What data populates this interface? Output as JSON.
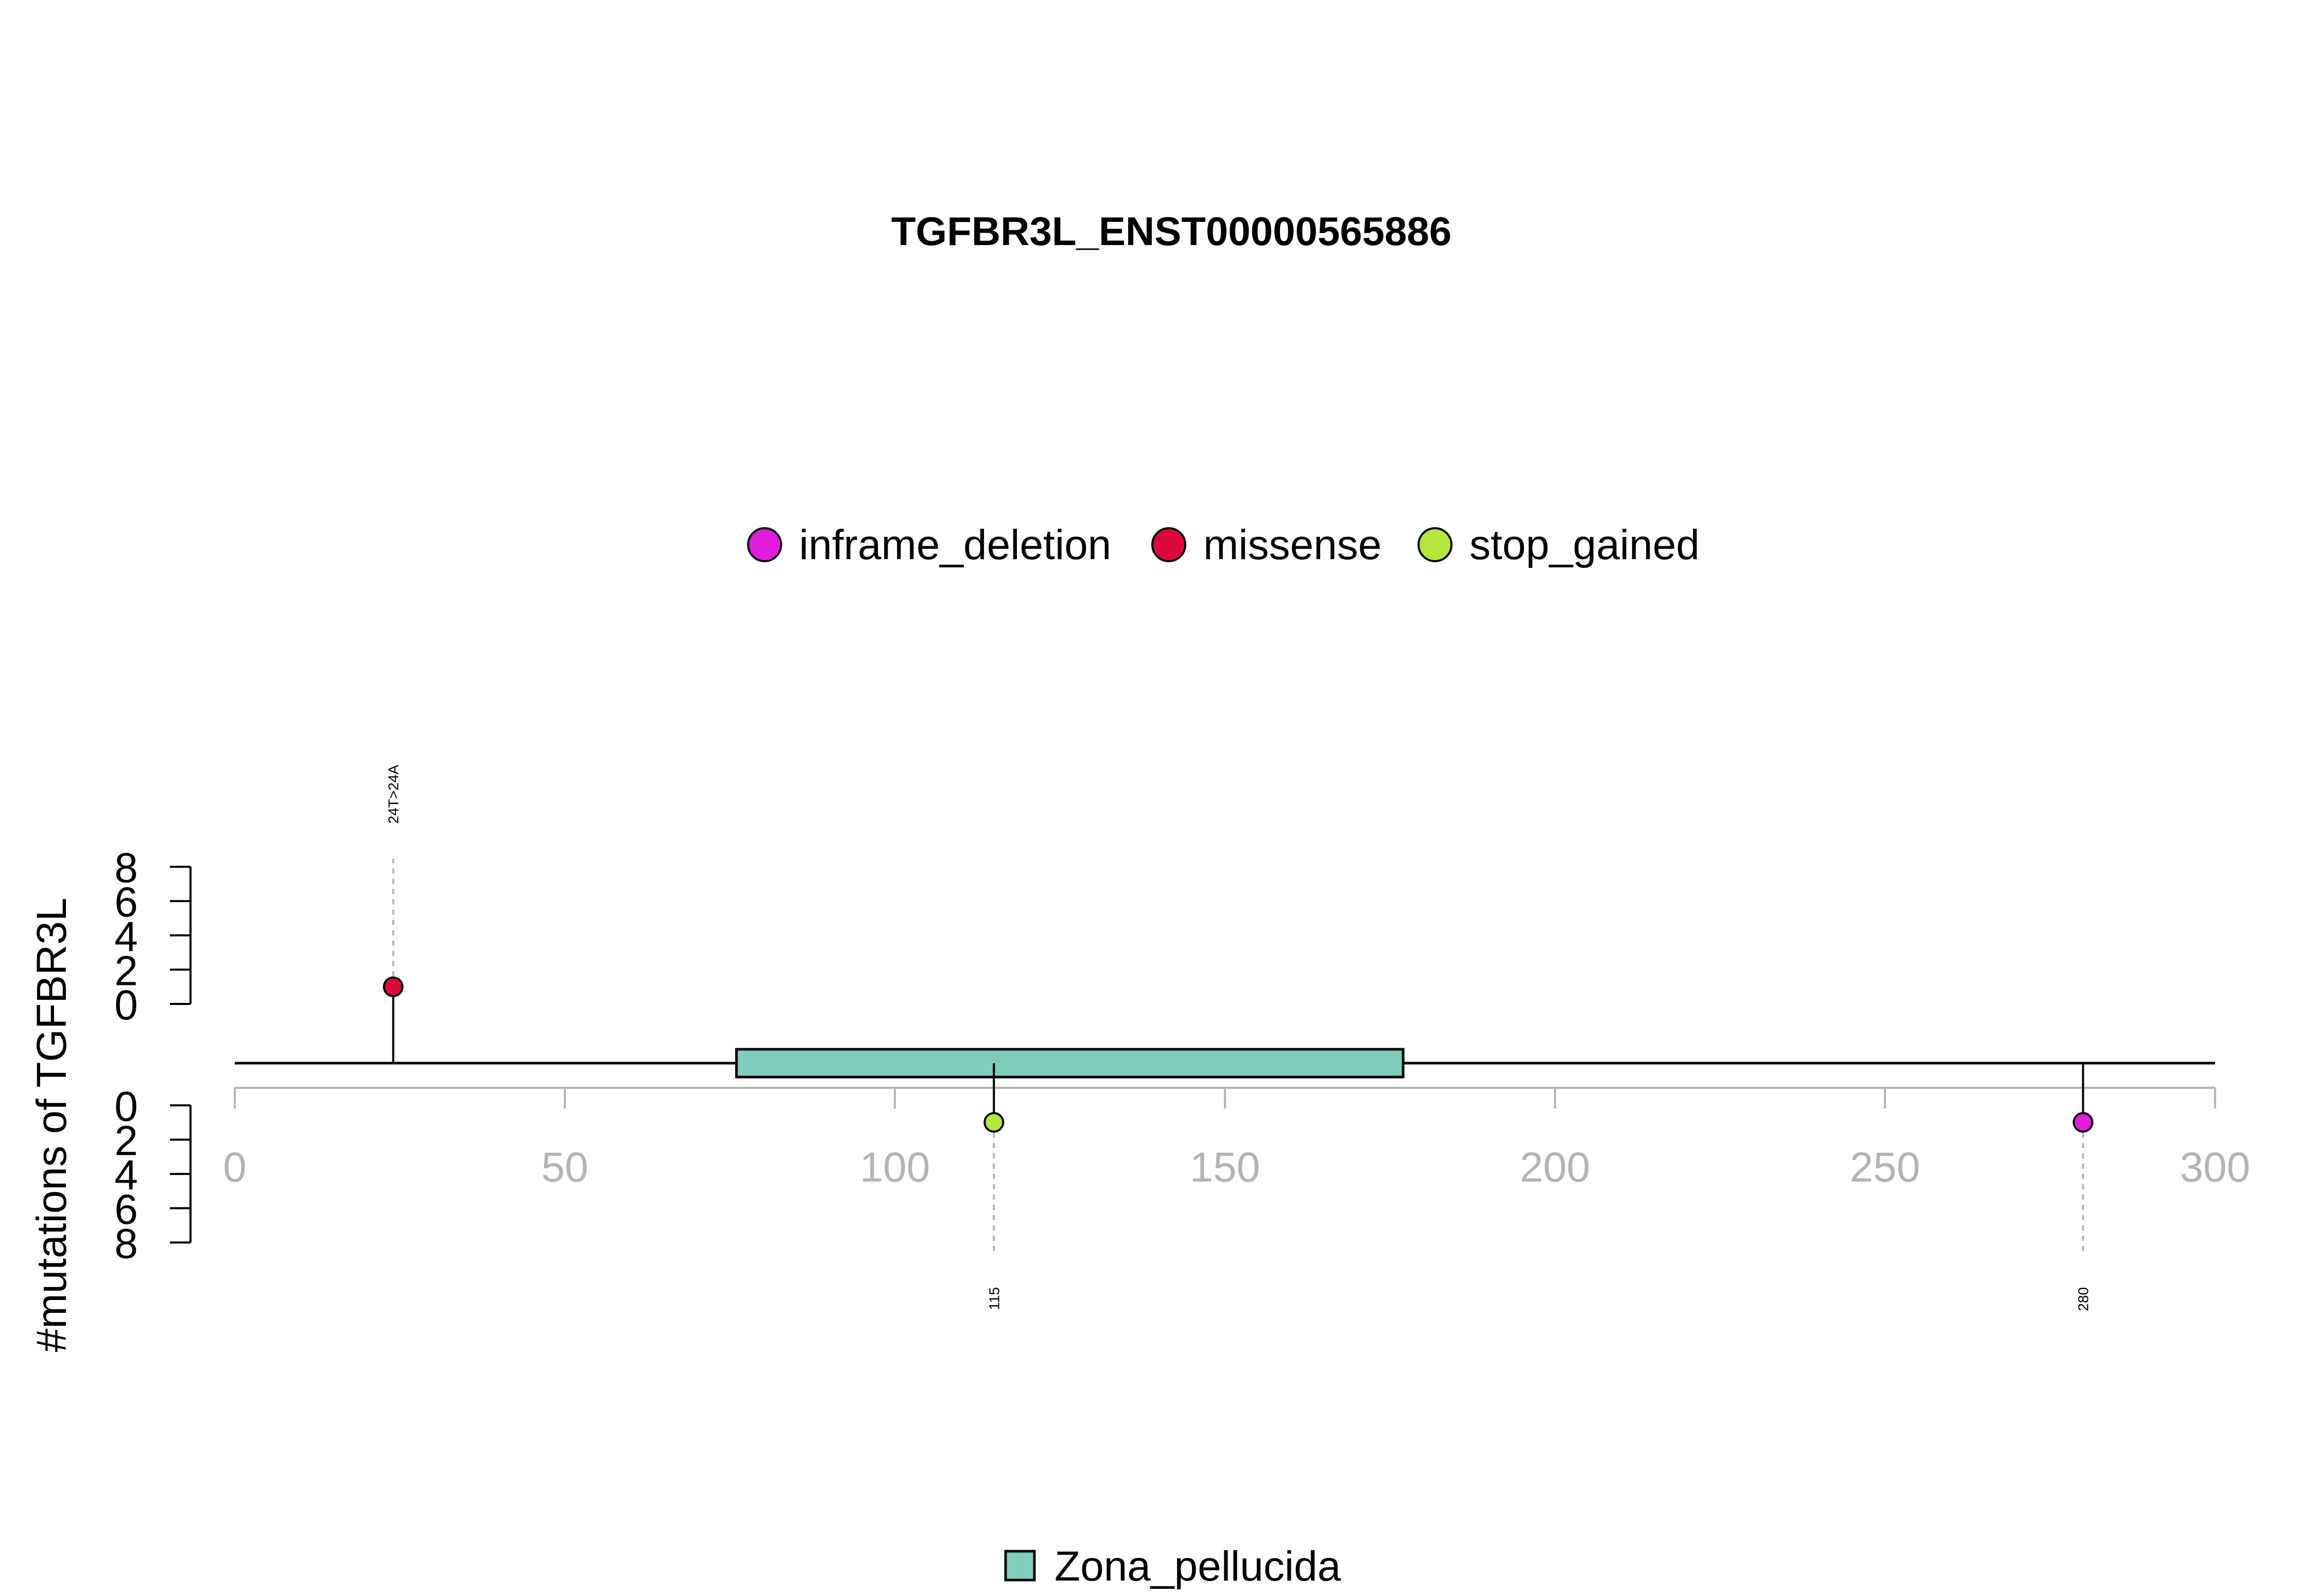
{
  "chart_data": {
    "type": "lollipop",
    "title": "TGFBR3L_ENST00000565886",
    "ylabel": "#mutations of TGFBR3L",
    "xlim": [
      0,
      300
    ],
    "x_ticks": [
      0,
      50,
      100,
      150,
      200,
      250,
      300
    ],
    "y_ticks": [
      0,
      2,
      4,
      6,
      8
    ],
    "y_range": [
      0,
      8
    ],
    "protein_length": 300,
    "legend_mutations": [
      {
        "name": "inframe_deletion",
        "color": "#e21ddc"
      },
      {
        "name": "missense",
        "color": "#dc0a3c"
      },
      {
        "name": "stop_gained",
        "color": "#b4e63c"
      }
    ],
    "domains": [
      {
        "name": "Zona_pellucida",
        "start": 76,
        "end": 177,
        "color": "#7fcdbb"
      }
    ],
    "legend_domains": [
      {
        "name": "Zona_pellucida",
        "color": "#7fcdbb"
      }
    ],
    "mutations": [
      {
        "position": 24,
        "count": 1,
        "type": "missense",
        "side": "top",
        "label": "24T>24A",
        "color": "#dc0a3c"
      },
      {
        "position": 115,
        "count": 1,
        "type": "stop_gained",
        "side": "bottom",
        "label": "115",
        "color": "#b4e63c"
      },
      {
        "position": 280,
        "count": 1,
        "type": "inframe_deletion",
        "side": "bottom",
        "label": "280",
        "color": "#e21ddc"
      }
    ]
  }
}
